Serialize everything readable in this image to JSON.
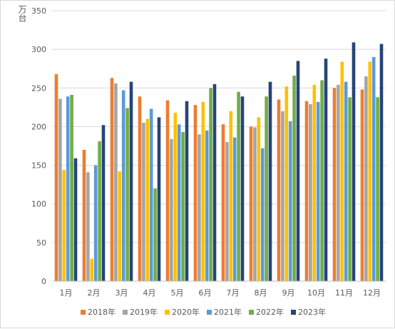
{
  "chart_data": {
    "type": "bar",
    "title": "",
    "xlabel": "",
    "ylabel": "万台",
    "ylim": [
      0,
      350
    ],
    "yticks": [
      0,
      50,
      100,
      150,
      200,
      250,
      300,
      350
    ],
    "grid": true,
    "legend_position": "bottom",
    "categories": [
      "1月",
      "2月",
      "3月",
      "4月",
      "5月",
      "6月",
      "7月",
      "8月",
      "9月",
      "10月",
      "11月",
      "12月"
    ],
    "series": [
      {
        "name": "2018年",
        "color": "#ED7D31",
        "values": [
          268,
          170,
          263,
          239,
          234,
          228,
          203,
          200,
          235,
          233,
          250,
          248
        ]
      },
      {
        "name": "2019年",
        "color": "#A5A5A5",
        "values": [
          236,
          141,
          256,
          205,
          184,
          190,
          180,
          199,
          220,
          229,
          254,
          265
        ]
      },
      {
        "name": "2020年",
        "color": "#FFC000",
        "values": [
          144,
          29,
          142,
          210,
          218,
          232,
          220,
          212,
          252,
          254,
          284,
          284
        ]
      },
      {
        "name": "2021年",
        "color": "#5B9BD5",
        "values": [
          239,
          150,
          247,
          223,
          203,
          195,
          186,
          172,
          207,
          232,
          258,
          290
        ]
      },
      {
        "name": "2022年",
        "color": "#70AD47",
        "values": [
          241,
          181,
          224,
          120,
          193,
          250,
          245,
          239,
          266,
          260,
          238,
          238
        ]
      },
      {
        "name": "2023年",
        "color": "#264478",
        "values": [
          159,
          202,
          258,
          212,
          233,
          255,
          239,
          258,
          285,
          288,
          309,
          307
        ]
      }
    ]
  }
}
